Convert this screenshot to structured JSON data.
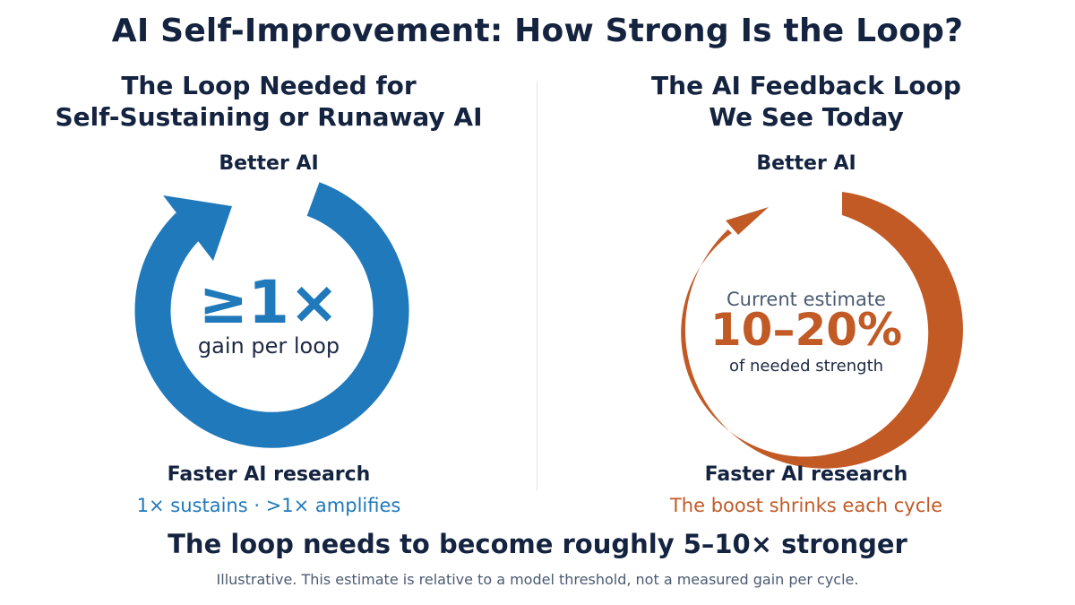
{
  "title": "AI Self-Improvement: How Strong Is the Loop?",
  "left_panel": {
    "heading_line1": "The Loop Needed for",
    "heading_line2": "Self-Sustaining or Runaway AI",
    "top_node": "Better AI",
    "bottom_node": "Faster AI research",
    "center_value": "≥1×",
    "center_caption": "gain per loop",
    "sub_caption": "1× sustains · >1× amplifies",
    "color": "#2079bb"
  },
  "right_panel": {
    "heading_line1": "The AI Feedback Loop",
    "heading_line2": "We See Today",
    "top_node": "Better AI",
    "bottom_node": "Faster AI research",
    "estimate_label": "Current estimate",
    "center_value": "10–20%",
    "center_caption": "of needed strength",
    "sub_caption": "The boost shrinks each cycle",
    "color": "#c25a26"
  },
  "conclusion": "The loop needs to become roughly 5–10× stronger",
  "footnote": "Illustrative. This estimate is relative to a model threshold, not a measured gain per cycle."
}
